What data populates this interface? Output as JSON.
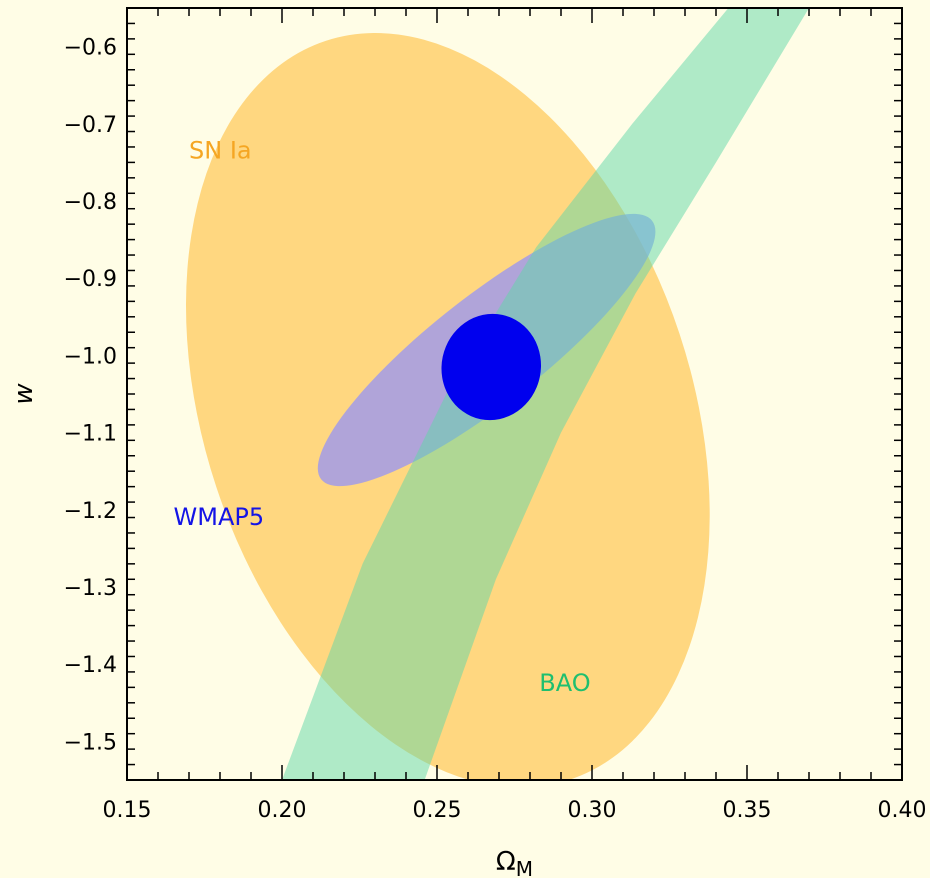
{
  "chart_data": {
    "type": "contour",
    "title": "",
    "xlabel": "Ω",
    "xlabel_subscript": "M",
    "ylabel": "w",
    "xlim": [
      0.15,
      0.4
    ],
    "ylim": [
      -1.55,
      -0.55
    ],
    "x_ticks": [
      {
        "value": 0.15,
        "label": "0.15"
      },
      {
        "value": 0.2,
        "label": "0.20"
      },
      {
        "value": 0.25,
        "label": "0.25"
      },
      {
        "value": 0.3,
        "label": "0.30"
      },
      {
        "value": 0.35,
        "label": "0.35"
      },
      {
        "value": 0.4,
        "label": "0.40"
      }
    ],
    "y_ticks": [
      {
        "value": -0.6,
        "label": "−0.6"
      },
      {
        "value": -0.7,
        "label": "−0.7"
      },
      {
        "value": -0.8,
        "label": "−0.8"
      },
      {
        "value": -0.9,
        "label": "−0.9"
      },
      {
        "value": -1.0,
        "label": "−1.0"
      },
      {
        "value": -1.1,
        "label": "−1.1"
      },
      {
        "value": -1.2,
        "label": "−1.2"
      },
      {
        "value": -1.3,
        "label": "−1.3"
      },
      {
        "value": -1.4,
        "label": "−1.4"
      },
      {
        "value": -1.5,
        "label": "−1.5"
      }
    ],
    "background_color": "#fffde6",
    "regions": [
      {
        "name": "SN Ia",
        "color": "#ffc34a",
        "opacity": 0.65,
        "shape": "ellipse",
        "center": [
          0.2535,
          -1.071
        ],
        "semi_axis_x": 0.1255,
        "semi_axis_y": 0.316,
        "rotation_deg": 71.7,
        "label": {
          "text": "SN Ia",
          "color": "#f5a623",
          "at": [
            0.17,
            -0.745
          ]
        }
      },
      {
        "name": "WMAP5",
        "color": "#8f8fff",
        "opacity": 0.7,
        "shape": "ellipse",
        "center": [
          0.266,
          -0.993
        ],
        "semi_axis_x": 0.0175,
        "semi_axis_y": 0.272,
        "rotation_deg": 52,
        "label": {
          "text": "WMAP5",
          "color": "#1414e6",
          "at": [
            0.165,
            -1.22
          ]
        }
      },
      {
        "name": "BAO",
        "color": "#5fd8a8",
        "opacity": 0.5,
        "shape": "band",
        "left_edge": [
          [
            0.2,
            -1.55
          ],
          [
            0.226,
            -1.27
          ],
          [
            0.253,
            -1.05
          ],
          [
            0.282,
            -0.86
          ],
          [
            0.313,
            -0.7
          ],
          [
            0.344,
            -0.55
          ]
        ],
        "right_edge": [
          [
            0.246,
            -1.55
          ],
          [
            0.269,
            -1.29
          ],
          [
            0.29,
            -1.1
          ],
          [
            0.314,
            -0.92
          ],
          [
            0.34,
            -0.75
          ],
          [
            0.37,
            -0.55
          ]
        ],
        "label": {
          "text": "BAO",
          "color": "#1fbf6f",
          "at": [
            0.283,
            -1.435
          ]
        }
      },
      {
        "name": "combined",
        "color": "#0000ee",
        "opacity": 1,
        "shape": "ellipse",
        "center": [
          0.2675,
          -1.015
        ],
        "semi_axis_x": 0.016,
        "semi_axis_y": 0.069,
        "rotation_deg": 12
      }
    ]
  }
}
